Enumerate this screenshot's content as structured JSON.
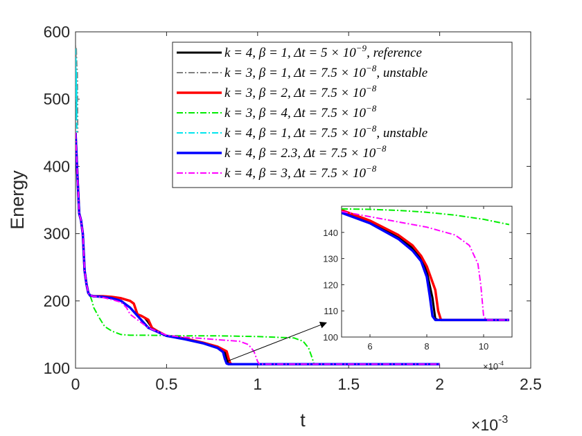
{
  "chart_data": {
    "type": "line",
    "main": {
      "xlabel": "t",
      "ylabel": "Energy",
      "xlim": [
        0,
        0.0025
      ],
      "ylim": [
        100,
        600
      ],
      "xticks": [
        0,
        0.0005,
        0.001,
        0.0015,
        0.002,
        0.0025
      ],
      "xtick_labels": [
        "0",
        "0.5",
        "1",
        "1.5",
        "2",
        "2.5"
      ],
      "yticks": [
        100,
        200,
        300,
        400,
        500,
        600
      ],
      "ytick_labels": [
        "100",
        "200",
        "300",
        "400",
        "500",
        "600"
      ],
      "x_exponent": {
        "base": "×10",
        "power": "-3"
      }
    },
    "series": [
      {
        "name": "k = 4, β = 1, Δt = 5 × 10^-9, reference",
        "legend_main": "k = 4,  β = 1,  Δt = 5 × 10",
        "legend_sup": "−9",
        "legend_tail": ", reference",
        "color": "#000000",
        "dash": "solid",
        "width": 3,
        "x": [
          0,
          5e-06,
          1e-05,
          2e-05,
          3e-05,
          4e-05,
          5e-05,
          6e-05,
          7e-05,
          8e-05,
          0.0001,
          0.00015,
          0.0002,
          0.00025,
          0.0003,
          0.00032,
          0.00034,
          0.00036,
          0.00038,
          0.0004,
          0.00042,
          0.00045,
          0.0005,
          0.0006,
          0.0007,
          0.00078,
          0.00082,
          0.00083,
          0.00084,
          0.00085,
          0.0009,
          0.0012,
          0.0015,
          0.0018,
          0.002
        ],
        "y": [
          450,
          420,
          390,
          330,
          320,
          300,
          245,
          225,
          212,
          208,
          207,
          207,
          206,
          204,
          200,
          196,
          180,
          178,
          175,
          168,
          160,
          155,
          148,
          144,
          138,
          132,
          125,
          115,
          107,
          106,
          106,
          106,
          106,
          106,
          106
        ]
      },
      {
        "name": "k = 3, β = 1, Δt = 7.5 × 10^-8, unstable",
        "legend_main": "k = 3,  β = 1,  Δt = 7.5 × 10",
        "legend_sup": "−8",
        "legend_tail": ", unstable",
        "color": "#808080",
        "dash": "9,3,2,3",
        "width": 2,
        "x": [
          0,
          2e-06,
          4e-06,
          7e-06,
          1e-05,
          1.2e-05
        ],
        "y": [
          580,
          560,
          575,
          550,
          540,
          450
        ]
      },
      {
        "name": "k = 3, β = 2, Δt = 7.5 × 10^-8",
        "legend_main": "k = 3,  β = 2,  Δt = 7.5 × 10",
        "legend_sup": "−8",
        "legend_tail": "",
        "color": "#ff0000",
        "dash": "solid",
        "width": 3.5,
        "x": [
          0,
          5e-06,
          1e-05,
          2e-05,
          3e-05,
          4e-05,
          5e-05,
          6e-05,
          7e-05,
          8e-05,
          0.0001,
          0.00015,
          0.0002,
          0.00025,
          0.0003,
          0.00032,
          0.00034,
          0.00036,
          0.00038,
          0.0004,
          0.00042,
          0.00045,
          0.0005,
          0.0006,
          0.0007,
          0.00078,
          0.00083,
          0.00084,
          0.00085,
          0.00086,
          0.0009,
          0.0012,
          0.0015,
          0.0018,
          0.002
        ],
        "y": [
          450,
          420,
          390,
          330,
          320,
          300,
          245,
          225,
          212,
          208,
          207,
          207,
          206,
          204,
          200,
          196,
          180,
          178,
          175,
          172,
          160,
          155,
          148,
          144,
          138,
          132,
          125,
          115,
          107,
          106,
          106,
          106,
          106,
          106,
          106
        ]
      },
      {
        "name": "k = 3, β = 4, Δt = 7.5 × 10^-8",
        "legend_main": "k = 3,  β = 4,  Δt = 7.5 × 10",
        "legend_sup": "−8",
        "legend_tail": "",
        "color": "#00ee00",
        "dash": "9,3,2,3",
        "width": 2,
        "x": [
          0,
          5e-06,
          1e-05,
          2e-05,
          3e-05,
          4e-05,
          5e-05,
          6e-05,
          7e-05,
          8e-05,
          9e-05,
          0.0001,
          0.00013,
          0.00016,
          0.0002,
          0.00025,
          0.0003,
          0.0004,
          0.0006,
          0.0008,
          0.001,
          0.0011,
          0.0012,
          0.00125,
          0.00128,
          0.0013,
          0.00131,
          0.0014,
          0.0018,
          0.002
        ],
        "y": [
          450,
          420,
          390,
          330,
          320,
          300,
          245,
          225,
          212,
          208,
          200,
          190,
          175,
          162,
          155,
          150,
          149,
          149,
          148,
          148,
          147,
          146,
          145,
          140,
          130,
          115,
          106,
          106,
          106,
          106
        ]
      },
      {
        "name": "k = 4, β = 1, Δt = 7.5 × 10^-8, unstable",
        "legend_main": "k = 4,  β = 1,  Δt = 7.5 × 10",
        "legend_sup": "−8",
        "legend_tail": ", unstable",
        "color": "#00e5ee",
        "dash": "9,3,2,3",
        "width": 2,
        "x": [
          0,
          1e-06,
          2e-06,
          3e-06,
          4e-06,
          5e-06,
          6e-06,
          7e-06,
          8e-06
        ],
        "y": [
          575,
          530,
          560,
          500,
          540,
          470,
          520,
          460,
          450
        ]
      },
      {
        "name": "k = 4, β = 2.3, Δt = 7.5 × 10^-8",
        "legend_main": "k = 4,  β = 2.3,  Δt = 7.5 × 10",
        "legend_sup": "−8",
        "legend_tail": "",
        "color": "#0000ff",
        "dash": "solid",
        "width": 3.5,
        "x": [
          0,
          5e-06,
          1e-05,
          2e-05,
          3e-05,
          4e-05,
          5e-05,
          6e-05,
          7e-05,
          8e-05,
          0.0001,
          0.00015,
          0.0002,
          0.00025,
          0.0003,
          0.0004,
          0.0005,
          0.0006,
          0.0007,
          0.00078,
          0.00081,
          0.00082,
          0.00083,
          0.00084,
          0.0009,
          0.0012,
          0.0015,
          0.0018,
          0.002
        ],
        "y": [
          450,
          420,
          390,
          330,
          320,
          300,
          245,
          225,
          212,
          208,
          207,
          206,
          204,
          200,
          190,
          160,
          148,
          143,
          137,
          130,
          124,
          114,
          107,
          106,
          106,
          106,
          106,
          106,
          106
        ]
      },
      {
        "name": "k = 4, β = 3, Δt = 7.5 × 10^-8",
        "legend_main": "k = 4,  β = 3,  Δt = 7.5 × 10",
        "legend_sup": "−8",
        "legend_tail": "",
        "color": "#ff00ff",
        "dash": "9,3,2,3",
        "width": 2,
        "x": [
          0,
          5e-06,
          1e-05,
          2e-05,
          3e-05,
          4e-05,
          5e-05,
          6e-05,
          7e-05,
          8e-05,
          0.0001,
          0.00015,
          0.0002,
          0.00025,
          0.00028,
          0.0003,
          0.00035,
          0.0004,
          0.0005,
          0.0006,
          0.0007,
          0.0008,
          0.0009,
          0.00095,
          0.00098,
          0.001,
          0.00101,
          0.0012,
          0.0015,
          0.0018,
          0.002
        ],
        "y": [
          450,
          420,
          390,
          330,
          320,
          300,
          245,
          225,
          212,
          208,
          207,
          205,
          202,
          198,
          190,
          180,
          170,
          160,
          149,
          146,
          144,
          142,
          140,
          135,
          125,
          110,
          106,
          106,
          106,
          106,
          106
        ]
      }
    ],
    "inset": {
      "xlim": [
        0.0005,
        0.0011
      ],
      "ylim": [
        100,
        150
      ],
      "xticks": [
        0.0006,
        0.0008,
        0.001
      ],
      "xtick_labels": [
        "6",
        "8",
        "10"
      ],
      "yticks": [
        100,
        110,
        120,
        130,
        140
      ],
      "ytick_labels": [
        "100",
        "110",
        "120",
        "130",
        "140"
      ],
      "x_exponent": {
        "base": "×10",
        "power": "-4"
      },
      "series": [
        {
          "ref": 0,
          "x": [
            0.0005,
            0.0006,
            0.0007,
            0.00075,
            0.00078,
            0.0008,
            0.00082,
            0.00083,
            0.00084,
            0.0009,
            0.00109
          ],
          "y": [
            148,
            144,
            138,
            134,
            130,
            125,
            115,
            107,
            106.5,
            106.5,
            106.5
          ]
        },
        {
          "ref": 2,
          "x": [
            0.0005,
            0.0006,
            0.0007,
            0.00075,
            0.00078,
            0.0008,
            0.00083,
            0.00084,
            0.00085,
            0.0009,
            0.00109
          ],
          "y": [
            148.5,
            144.5,
            139,
            135,
            131,
            127,
            118,
            110,
            106.5,
            106.5,
            106.5
          ]
        },
        {
          "ref": 3,
          "x": [
            0.0005,
            0.0006,
            0.0007,
            0.0008,
            0.0009,
            0.001,
            0.00109
          ],
          "y": [
            149,
            148.8,
            148.4,
            147.7,
            146.6,
            145,
            143
          ]
        },
        {
          "ref": 5,
          "x": [
            0.0005,
            0.0006,
            0.0007,
            0.00075,
            0.00078,
            0.0008,
            0.00081,
            0.00082,
            0.00083,
            0.0009,
            0.00109
          ],
          "y": [
            147.5,
            143.5,
            137.5,
            133,
            129,
            123,
            116,
            108,
            106.5,
            106.5,
            106.5
          ]
        },
        {
          "ref": 6,
          "x": [
            0.0005,
            0.0006,
            0.0007,
            0.0008,
            0.0009,
            0.00095,
            0.00098,
            0.00099,
            0.001,
            0.00101,
            0.00109
          ],
          "y": [
            148,
            146,
            144,
            142,
            139,
            135,
            128,
            120,
            108,
            106.5,
            106.5
          ]
        }
      ]
    },
    "annotation": {
      "type": "arrow",
      "from": [
        0.00083,
        110
      ],
      "to_inset_data": [
        0.0005,
        106
      ],
      "description": "zoom arrow from main curve to inset"
    }
  }
}
